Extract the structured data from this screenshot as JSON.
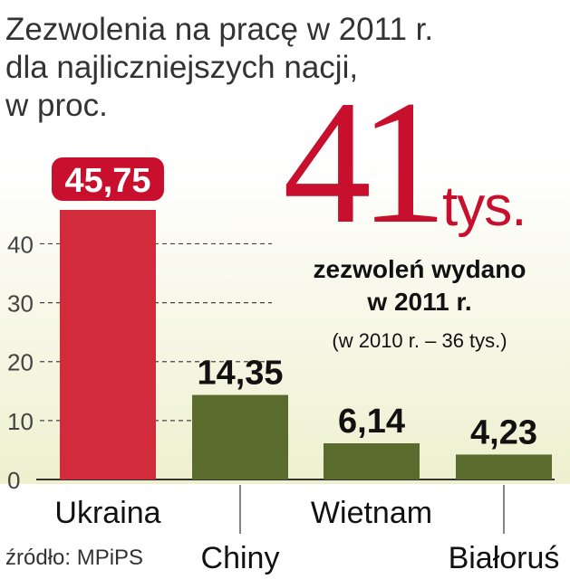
{
  "title_lines": [
    "Zezwolenia na pracę w 2011 r.",
    "dla najliczniejszych nacji,",
    "w proc."
  ],
  "source": "źródło: MPiPS",
  "highlight": {
    "number": "41",
    "unit": "tys.",
    "line1": "zezwoleń wydano",
    "line2": "w 2011 r.",
    "note": "(w 2010 r. – 36 tys.)"
  },
  "colors": {
    "accent": "#c8102e",
    "bar_first": "#d22c3c",
    "bar_others": "#5a6b2e",
    "background_tint": "#eef0cf",
    "text": "#333333"
  },
  "chart_data": {
    "type": "bar",
    "categories": [
      "Ukraina",
      "Chiny",
      "Wietnam",
      "Białoruś"
    ],
    "values": [
      45.75,
      14.35,
      6.14,
      4.23
    ],
    "value_labels": [
      "45,75",
      "14,35",
      "6,14",
      "4,23"
    ],
    "ylim": [
      0,
      45.75
    ],
    "yticks": [
      0,
      10,
      20,
      30,
      40
    ],
    "ytick_labels": [
      "0",
      "10",
      "20",
      "30",
      "40"
    ],
    "grid": "dashed lines at y ticks",
    "title": "Zezwolenia na pracę w 2011 r. dla najliczniejszych nacji, w proc.",
    "xlabel": "",
    "ylabel": ""
  }
}
